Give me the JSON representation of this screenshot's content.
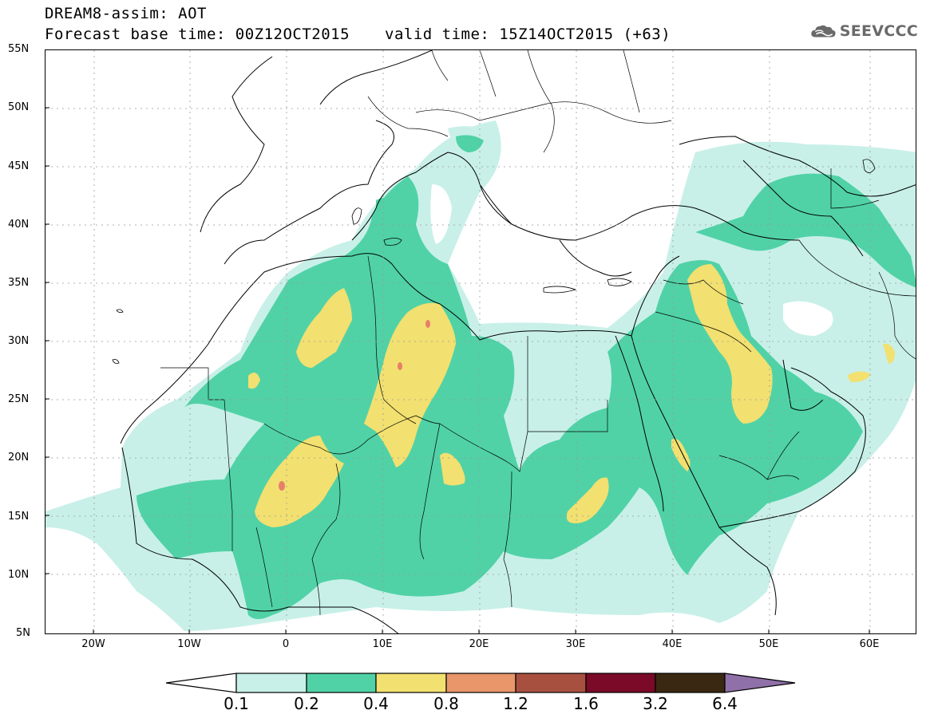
{
  "header": {
    "title": "DREAM8-assim: AOT",
    "base_time": "Forecast base time: 00Z12OCT2015",
    "valid_time": "valid time: 15Z14OCT2015 (+63)"
  },
  "logo": {
    "text": "SEEVCCC",
    "icon": "cloud-icon"
  },
  "map": {
    "lat_labels": [
      "55N",
      "50N",
      "45N",
      "40N",
      "35N",
      "30N",
      "25N",
      "20N",
      "15N",
      "10N",
      "5N"
    ],
    "lon_labels": [
      "20W",
      "10W",
      "0",
      "10E",
      "20E",
      "30E",
      "40E",
      "50E",
      "60E"
    ],
    "grid": true,
    "lon_range": [
      -25,
      65
    ],
    "lat_range": [
      5,
      55
    ]
  },
  "colorbar": {
    "levels": [
      "0.1",
      "0.2",
      "0.4",
      "0.8",
      "1.2",
      "1.6",
      "3.2",
      "6.4"
    ],
    "colors": [
      "#c8f0e8",
      "#50d2a6",
      "#f2e070",
      "#e8966a",
      "#a85040",
      "#7a0a28",
      "#3a2812",
      "#9070a8"
    ],
    "under_color": "#ffffff"
  },
  "fill_colors": {
    "light": "#c8f0e8",
    "medium": "#50d2a6",
    "yellow": "#f2e070",
    "red": "#e87f6a"
  }
}
